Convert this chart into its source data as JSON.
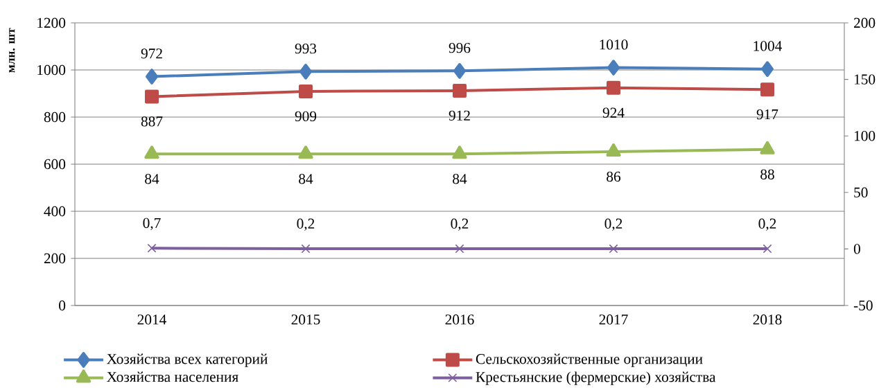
{
  "chart_data": {
    "type": "line",
    "ylabel": "млн. шт",
    "categories": [
      "2014",
      "2015",
      "2016",
      "2017",
      "2018"
    ],
    "ylim": [
      0,
      1200
    ],
    "yticks": [
      0,
      200,
      400,
      600,
      800,
      1000,
      1200
    ],
    "y2lim": [
      -50,
      200
    ],
    "y2ticks": [
      -50,
      0,
      50,
      100,
      150,
      200
    ],
    "grid": "y",
    "legend": "bottom",
    "series": [
      {
        "name": "Хозяйства всех категорий",
        "color": "#4a7ebb",
        "marker": "diamond",
        "values": [
          972,
          993,
          996,
          1010,
          1004
        ],
        "value_labels": [
          "972",
          "993",
          "996",
          "1010",
          "1004"
        ]
      },
      {
        "name": "Сельскохозяйственные организации",
        "color": "#be4b48",
        "marker": "square",
        "values": [
          887,
          909,
          912,
          924,
          917
        ],
        "value_labels": [
          "887",
          "909",
          "912",
          "924",
          "917"
        ]
      },
      {
        "name": "Хозяйства населения",
        "color": "#98b954",
        "marker": "triangle",
        "axis": "y2",
        "values": [
          84,
          84,
          84,
          86,
          88
        ],
        "value_labels": [
          "84",
          "84",
          "84",
          "86",
          "88"
        ]
      },
      {
        "name": "Крестьянские (фермерские) хозяйства",
        "color": "#7d5fa0",
        "marker": "cross",
        "axis": "y2",
        "values": [
          0.7,
          0.2,
          0.2,
          0.2,
          0.2
        ],
        "value_labels": [
          "0,7",
          "0,2",
          "0,2",
          "0,2",
          "0,2"
        ]
      }
    ]
  }
}
